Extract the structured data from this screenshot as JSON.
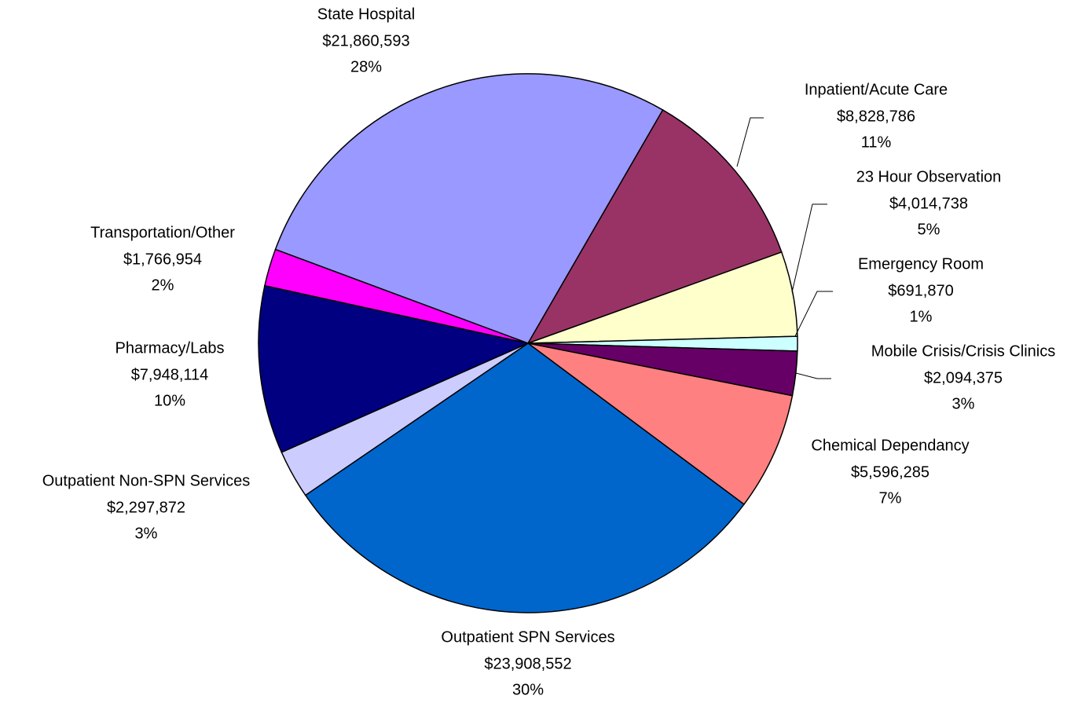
{
  "chart_data": {
    "type": "pie",
    "categories": [
      "Inpatient/Acute Care",
      "23 Hour Observation",
      "Emergency Room",
      "Mobile Crisis/Crisis Clinics",
      "Chemical Dependancy",
      "Outpatient SPN Services",
      "Outpatient Non-SPN Services",
      "Pharmacy/Labs",
      "Transportation/Other",
      "State Hospital"
    ],
    "values": [
      8828786,
      4014738,
      691870,
      2094375,
      5596285,
      23908552,
      2297872,
      7948114,
      1766954,
      21860593
    ],
    "value_labels": [
      "$8,828,786",
      "$4,014,738",
      "$691,870",
      "$2,094,375",
      "$5,596,285",
      "$23,908,552",
      "$2,297,872",
      "$7,948,114",
      "$1,766,954",
      "$21,860,593"
    ],
    "percent_labels": [
      "11%",
      "5%",
      "1%",
      "3%",
      "7%",
      "30%",
      "3%",
      "10%",
      "2%",
      "28%"
    ],
    "colors": [
      "#993366",
      "#ffffcc",
      "#ccffff",
      "#660066",
      "#ff8080",
      "#0066cc",
      "#ccccff",
      "#000080",
      "#ff00ff",
      "#9999ff"
    ]
  }
}
